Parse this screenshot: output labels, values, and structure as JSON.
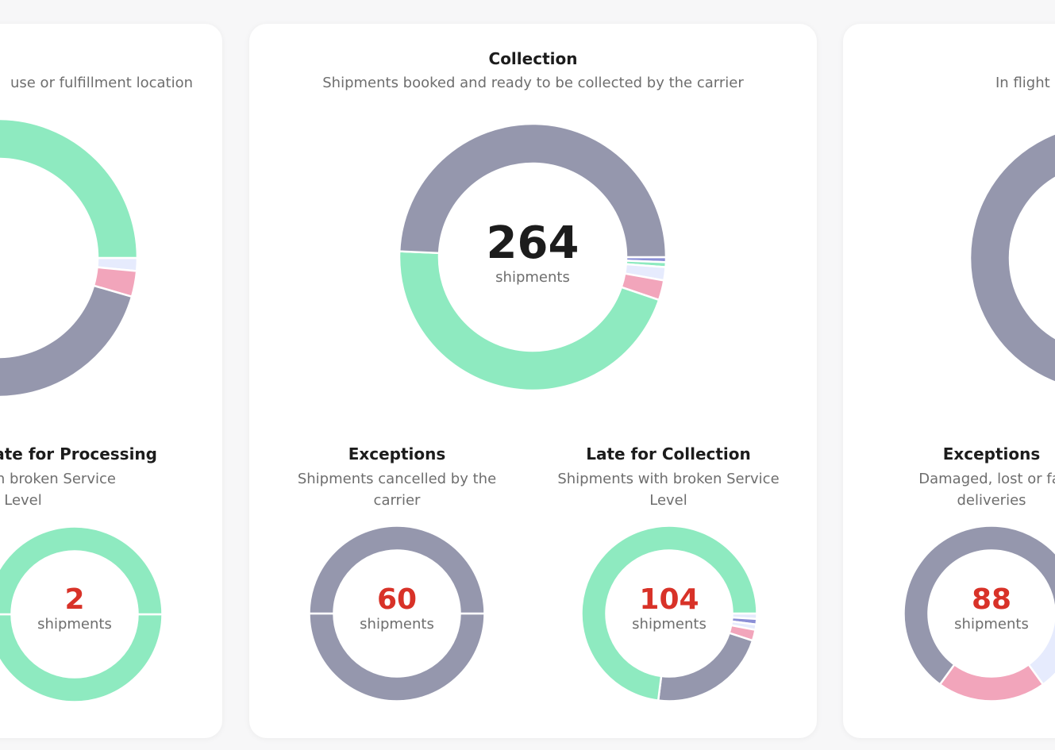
{
  "colors": {
    "green": "#8eeac0",
    "gray": "#9597ad",
    "pink": "#f2a5bb",
    "lightblue": "#e6ebfd",
    "purple": "#8b8fd6",
    "red": "#d83228"
  },
  "cards": [
    {
      "main": {
        "subtitle": "use or fulfillment location",
        "segments": [
          {
            "color": "lightblue",
            "share": 1.5
          },
          {
            "color": "pink",
            "share": 3
          },
          {
            "color": "gray",
            "share": 45.5
          },
          {
            "color": "green",
            "share": 50
          }
        ]
      },
      "subs": [
        {
          "title": "ate for Processing",
          "subtitle": "nents with broken Service Level",
          "value": "2",
          "unit": "shipments",
          "segments": [
            {
              "color": "green",
              "share": 50
            },
            {
              "color": "green",
              "share": 50
            }
          ]
        }
      ]
    },
    {
      "main": {
        "title": "Collection",
        "subtitle": "Shipments booked and ready to be collected by the carrier",
        "value": "264",
        "unit": "shipments",
        "segments": [
          {
            "color": "purple",
            "share": 0.6
          },
          {
            "color": "green",
            "share": 0.6
          },
          {
            "color": "lightblue",
            "share": 1.6
          },
          {
            "color": "pink",
            "share": 2.4
          },
          {
            "color": "green",
            "share": 45.5
          },
          {
            "color": "gray",
            "share": 49.3
          }
        ]
      },
      "subs": [
        {
          "title": "Exceptions",
          "subtitle": "Shipments cancelled by the carrier",
          "value": "60",
          "unit": "shipments",
          "segments": [
            {
              "color": "gray",
              "share": 50
            },
            {
              "color": "gray",
              "share": 50
            }
          ]
        },
        {
          "title": "Late for Collection",
          "subtitle": "Shipments with broken Service Level",
          "value": "104",
          "unit": "shipments",
          "segments": [
            {
              "color": "lightblue",
              "share": 1
            },
            {
              "color": "purple",
              "share": 1
            },
            {
              "color": "lightblue",
              "share": 1
            },
            {
              "color": "pink",
              "share": 2
            },
            {
              "color": "gray",
              "share": 22
            },
            {
              "color": "green",
              "share": 73
            }
          ]
        }
      ]
    },
    {
      "main": {
        "subtitle": "In flight",
        "segments": [
          {
            "color": "gray",
            "share": 100
          }
        ]
      },
      "subs": [
        {
          "title": "Exceptions",
          "subtitle": "Damaged, lost or fai deliveries",
          "value": "88",
          "unit": "shipments",
          "segments": [
            {
              "color": "lightblue",
              "share": 15
            },
            {
              "color": "pink",
              "share": 20
            },
            {
              "color": "gray",
              "share": 65
            }
          ]
        }
      ]
    }
  ]
}
